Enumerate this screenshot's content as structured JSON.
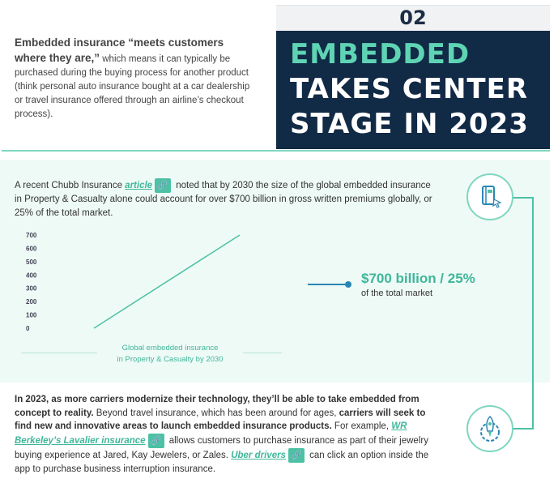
{
  "header": {
    "section_number": "02",
    "title_line1": "EMBEDDED",
    "title_line2": "TAKES CENTER",
    "title_line3": "STAGE IN 2023",
    "title_accent_color": "#5fd4b4",
    "title_color": "#ffffff",
    "title_bg": "#112a46"
  },
  "intro": {
    "lead": "Embedded insurance “meets customers where they are,”",
    "body": " which means it can typically be purchased during the buying process for another product (think personal auto insurance bought at a car dealership or travel insurance offered through an airline’s checkout process)."
  },
  "panel": {
    "para_prefix": "A recent Chubb Insurance ",
    "para_link": "article",
    "para_suffix": " noted that by 2030 the size of the global embedded insurance in Property & Casualty alone could account for over $700 billion in gross written premiums globally, or 25% of the total market.",
    "link_icon": "link-icon"
  },
  "chart_data": {
    "type": "line",
    "y_ticks": [
      "700",
      "600",
      "500",
      "400",
      "300",
      "200",
      "100",
      "0"
    ],
    "ylim": [
      0,
      700
    ],
    "x": [
      0,
      1
    ],
    "series": [
      {
        "values": [
          0,
          700
        ]
      }
    ],
    "caption_line1": "Global embedded insurance",
    "caption_line2": "in Property & Casualty by 2030",
    "line_color": "#4cc1a4",
    "grid": false
  },
  "stat": {
    "big": "$700 billion / 25%",
    "small": "of the total market",
    "accent_color": "#3fb69a",
    "pointer_color": "#2a86b4"
  },
  "icons": {
    "top": "book-cursor-icon",
    "bottom": "rocket-gear-icon"
  },
  "para2": {
    "s1_bold": "In 2023, as more carriers modernize their technology, they’ll be able to take embedded from concept to reality.",
    "s2": " Beyond travel insurance, which has been around for ages, ",
    "s3_bold": "carriers will seek to find new and innovative areas to launch embedded insurance products.",
    "s4": " For example, ",
    "link1": "WR Berkeley’s Lavalier insurance",
    "s5": " allows customers to purchase insurance as part of their jewelry buying experience at Jared, Kay Jewelers, or Zales. ",
    "link2": "Uber drivers",
    "s6": " can click an option inside the app to purchase business interruption insurance."
  }
}
